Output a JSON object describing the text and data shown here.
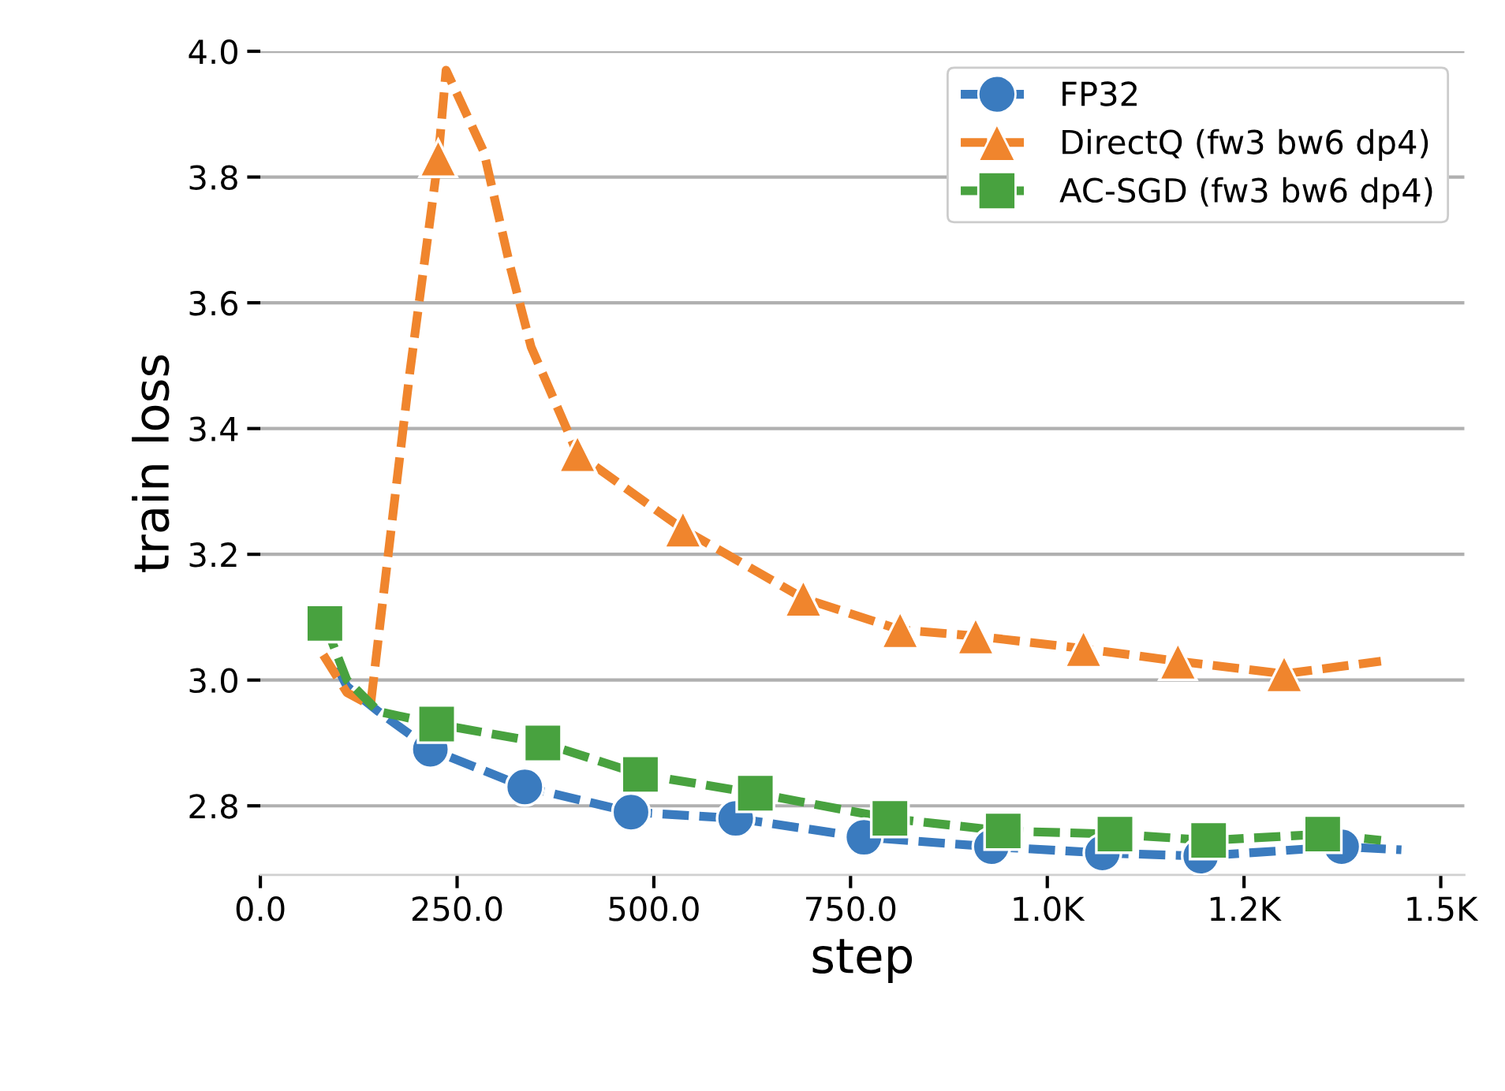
{
  "chart_data": {
    "type": "line",
    "xlabel": "step",
    "ylabel": "train loss",
    "xlim": [
      0,
      1530
    ],
    "ylim": [
      2.69,
      4.0
    ],
    "xticks": [
      {
        "value": 0,
        "label": "0.0"
      },
      {
        "value": 250,
        "label": "250.0"
      },
      {
        "value": 500,
        "label": "500.0"
      },
      {
        "value": 750,
        "label": "750.0"
      },
      {
        "value": 1000,
        "label": "1.0K"
      },
      {
        "value": 1250,
        "label": "1.2K"
      },
      {
        "value": 1500,
        "label": "1.5K"
      }
    ],
    "yticks": [
      {
        "value": 2.8,
        "label": "2.8"
      },
      {
        "value": 3.0,
        "label": "3.0"
      },
      {
        "value": 3.2,
        "label": "3.2"
      },
      {
        "value": 3.4,
        "label": "3.4"
      },
      {
        "value": 3.6,
        "label": "3.6"
      },
      {
        "value": 3.8,
        "label": "3.8"
      },
      {
        "value": 4.0,
        "label": "4.0"
      }
    ],
    "grid": "y",
    "legend": "top right",
    "line_style": "dashed",
    "series": [
      {
        "color": "#3a7bbf",
        "x": [
          98,
          110,
          150,
          216,
          336,
          471,
          604,
          767,
          929,
          1070,
          1195,
          1374,
          1450
        ],
        "values": [
          3.02,
          2.99,
          2.95,
          2.89,
          2.83,
          2.79,
          2.78,
          2.75,
          2.735,
          2.725,
          2.72,
          2.735,
          2.73
        ]
      },
      {
        "color": "#f0852d",
        "x": [
          80,
          110,
          140,
          170,
          190,
          226,
          236,
          284,
          317,
          344,
          403,
          537,
          690,
          813,
          909,
          1046,
          1166,
          1301,
          1424
        ],
        "values": [
          3.04,
          2.98,
          2.96,
          3.28,
          3.49,
          3.83,
          3.97,
          3.84,
          3.66,
          3.53,
          3.36,
          3.24,
          3.13,
          3.08,
          3.07,
          3.05,
          3.03,
          3.01,
          3.03
        ]
      },
      {
        "color": "#48a23f",
        "x": [
          82,
          110,
          150,
          224,
          359,
          483,
          629,
          800,
          944,
          1086,
          1205,
          1350,
          1424
        ],
        "values": [
          3.09,
          3.0,
          2.95,
          2.93,
          2.9,
          2.85,
          2.82,
          2.78,
          2.76,
          2.755,
          2.745,
          2.755,
          2.745
        ]
      },
      {
        "type": "scatter",
        "name": "FP32",
        "color": "#3a7bbf",
        "marker": "circle",
        "x": [
          216,
          336,
          471,
          604,
          767,
          929,
          1070,
          1195,
          1374
        ],
        "values": [
          2.89,
          2.83,
          2.79,
          2.78,
          2.75,
          2.735,
          2.725,
          2.72,
          2.735
        ]
      },
      {
        "type": "scatter",
        "name": "DirectQ (fw3 bw6 dp4)",
        "color": "#f0852d",
        "marker": "triangle",
        "x": [
          226,
          403,
          537,
          690,
          813,
          909,
          1046,
          1166,
          1301
        ],
        "values": [
          3.83,
          3.36,
          3.24,
          3.13,
          3.08,
          3.07,
          3.05,
          3.03,
          3.01
        ]
      },
      {
        "type": "scatter",
        "name": "AC-SGD (fw3 bw6 dp4)",
        "color": "#48a23f",
        "marker": "square",
        "x": [
          82,
          224,
          359,
          483,
          629,
          800,
          944,
          1086,
          1205,
          1350
        ],
        "values": [
          3.09,
          2.93,
          2.9,
          2.85,
          2.82,
          2.78,
          2.76,
          2.755,
          2.745,
          2.755
        ]
      }
    ]
  }
}
